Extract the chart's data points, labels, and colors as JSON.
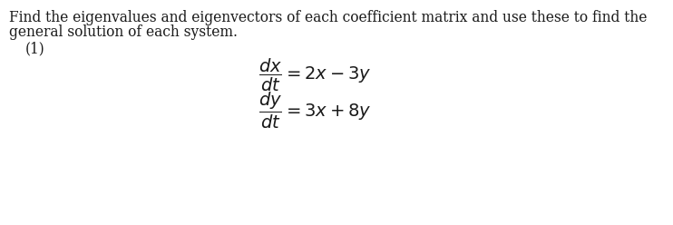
{
  "background_color": "#ffffff",
  "text_color": "#1a1a1a",
  "paragraph_line1": "Find the eigenvalues and eigenvectors of each coefficient matrix and use these to find the",
  "paragraph_line2": "general solution of each system.",
  "label_text": "(1)",
  "eq1_math": "$\\dfrac{dx}{dt} = 2x - 3y$",
  "eq2_math": "$\\dfrac{dy}{dt} = 3x + 8y$",
  "para_fontsize": 11.2,
  "math_fontsize": 14.0,
  "label_fontsize": 11.2
}
